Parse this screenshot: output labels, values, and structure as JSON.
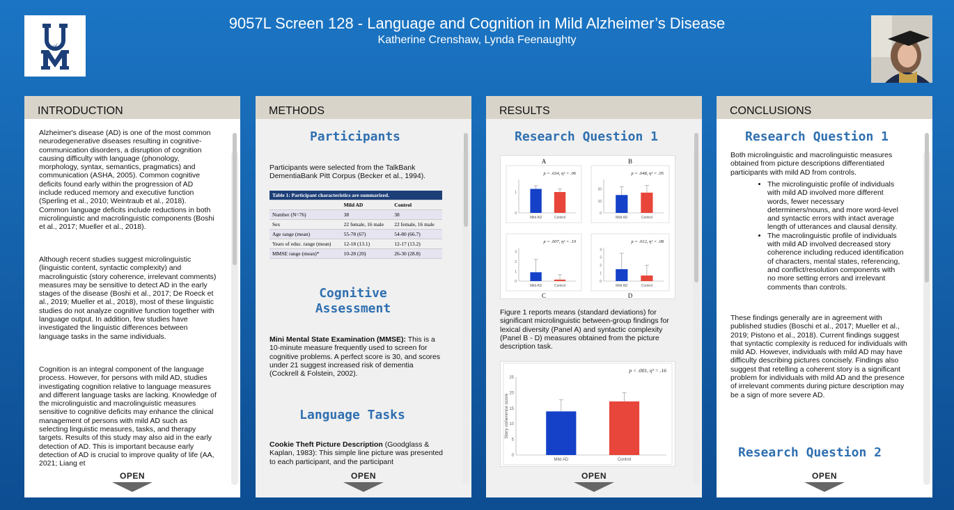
{
  "header": {
    "title": "9057L Screen 128 - Language and Cognition in Mild Alzheimer’s Disease",
    "authors": "Katherine Crenshaw, Lynda Feenaughty",
    "logo_text": "UofM"
  },
  "colors": {
    "mild_ad": "#1441c8",
    "control": "#e8463a",
    "heading": "#2f6fb0"
  },
  "panels": {
    "introduction": {
      "heading": "INTRODUCTION",
      "p1": "Alzheimer's disease (AD) is one of the most common neurodegenerative diseases resulting in cognitive-communication disorders, a disruption of cognition causing difficulty with language (phonology, morphology, syntax, semantics, pragmatics) and communication (ASHA, 2005). Common cognitive deficits found early within the progression of AD include reduced memory and executive function (Sperling et al., 2010; Weintraub et al., 2018). Common language deficits include reductions in both microlinguistic and macrolinguistic components (Boshi et al., 2017; Mueller et al., 2018).",
      "p2": "Although recent studies suggest  microlinguistic (linguistic content, syntactic complexity) and macrolinguistic (story coherence, irrelevant comments) measures may be sensitive to detect AD in the early stages of the disease (Boshi et al., 2017; De Roeck et al., 2019; Mueller et al., 2018), most of these linguistic studies do not analyze cognitive function together with language output. In addition, few studies have investigated the linguistic differences between language tasks in the same individuals.",
      "p3": "Cognition is an integral component of the language process. However, for persons with mild AD, studies investigating cognition relative to language measures and different language tasks are lacking. Knowledge of the microlinguistic and macrolinguistic measures sensitive to cognitive deficits may enhance the clinical management of persons with mild AD such as selecting linguistic measures, tasks, and therapy targets. Results of this study may also aid in the early detection of AD. This is important because early detection of AD is crucial to improve quality of life (AA, 2021; Liang et",
      "open": "OPEN"
    },
    "methods": {
      "heading": "METHODS",
      "participants_heading": "Participants",
      "participants_text": "Participants were selected from the TalkBank DementiaBank Pitt Corpus (Becker et al., 1994).",
      "table": {
        "caption": "Table 1: Participant characteristics are summarized.",
        "columns": [
          "",
          "Mild AD",
          "Control"
        ],
        "rows": [
          [
            "Number (N=76)",
            "38",
            "38"
          ],
          [
            "Sex",
            "22 female, 16 male",
            "22 female, 16 male"
          ],
          [
            "Age range (mean)",
            "55-78 (67)",
            "54-80 (66.7)"
          ],
          [
            "Years of educ. range (mean)",
            "12-18 (13.1)",
            "12-17 (13.2)"
          ],
          [
            "MMSE range (mean)*",
            "10-28 (20)",
            "26-30 (28.8)"
          ]
        ]
      },
      "cognitive_heading": "Cognitive Assessment",
      "mmse_label": "Mini Mental State Examination (MMSE):",
      "mmse_text": " This is a 10-minute measure frequently used to screen for cognitive problems. A perfect score is 30, and scores under 21 suggest increased risk of dementia (Cockrell & Folstein, 2002).",
      "language_heading": "Language Tasks",
      "cookie_label": "Cookie Theft Picture Description",
      "cookie_text": " (Goodglass & Kaplan, 1983): This simple line picture was presented to each participant, and the participant",
      "open": "OPEN"
    },
    "results": {
      "heading": "RESULTS",
      "rq1_heading": "Research Question 1",
      "figure_caption": "Figure 1 reports means (standard deviations) for significant microlinguistic between-group findings for lexical diversity (Panel A) and syntactic complexity (Panel B - D) measures obtained from the picture description task.",
      "open": "OPEN"
    },
    "conclusions": {
      "heading": "CONCLUSIONS",
      "rq1_heading": "Research Question 1",
      "intro": "Both microlinguistic and macrolinguistic measures obtained from picture descriptions differentiated participants with mild AD from controls.",
      "bullets": [
        "The microlinguistic profile of individuals with mild AD involved more different words, fewer necessary determiners/nouns, and more word-level and syntactic errors with intact average length of utterances and clausal density.",
        "The macrolinguistic profile of individuals with mild AD involved decreased story coherence including reduced identification of characters, mental states, referencing, and conflict/resolution components with no more setting errors and irrelevant comments than controls."
      ],
      "p2": "These findings generally are in agreement with published studies (Boschi et al., 2017; Mueller et al., 2019; Pistono et al., 2018). Current findings suggest that syntactic complexity is reduced for individuals with mild AD. However, individuals with mild AD may have difficulty describing pictures concisely. Findings also suggest that retelling a coherent story is a significant problem for individuals with mild AD and the presence of irrelevant comments during picture description may be a sign of more severe AD.",
      "rq2_heading": "Research Question 2",
      "open": "OPEN"
    }
  },
  "chart_data": [
    {
      "type": "bar",
      "panel_label": "A",
      "stat": "p = .034, η² = .06",
      "categories": [
        "Mild AD",
        "Control"
      ],
      "values": [
        1.15,
        1.0
      ],
      "errors": [
        0.15,
        0.15
      ],
      "ylim": [
        0,
        1.6
      ],
      "yticks": [
        "0",
        "1"
      ]
    },
    {
      "type": "bar",
      "panel_label": "B",
      "stat": "p = .048, η² = .05",
      "categories": [
        "Mild AD",
        "Control"
      ],
      "values": [
        15,
        17
      ],
      "errors": [
        7,
        6
      ],
      "ylim": [
        0,
        28
      ],
      "yticks": [
        "0",
        "10",
        "20"
      ]
    },
    {
      "type": "bar",
      "panel_label": "C",
      "stat": "p = .007, η² = .10",
      "categories": [
        "Mild AD",
        "Control"
      ],
      "values": [
        0.9,
        0.15
      ],
      "errors": [
        1.3,
        0.5
      ],
      "ylim": [
        0,
        3.4
      ],
      "yticks": [
        "0",
        "1",
        "2",
        "3"
      ]
    },
    {
      "type": "bar",
      "panel_label": "D",
      "stat": "p = .012, η² = .08",
      "categories": [
        "Mild AD",
        "Control"
      ],
      "values": [
        1.5,
        0.7
      ],
      "errors": [
        2.0,
        1.3
      ],
      "ylim": [
        0,
        4.2
      ],
      "yticks": [
        "0",
        "1",
        "2",
        "3",
        "4"
      ]
    },
    {
      "type": "bar",
      "stat": "p < .001, η² = .16",
      "ylabel": "Story coherence  score",
      "categories": [
        "Mild AD",
        "Control"
      ],
      "values": [
        14,
        17.2
      ],
      "errors": [
        3.7,
        2.8
      ],
      "ylim": [
        0,
        25
      ],
      "yticks": [
        "0",
        "5",
        "10",
        "15",
        "20",
        "25"
      ]
    }
  ]
}
